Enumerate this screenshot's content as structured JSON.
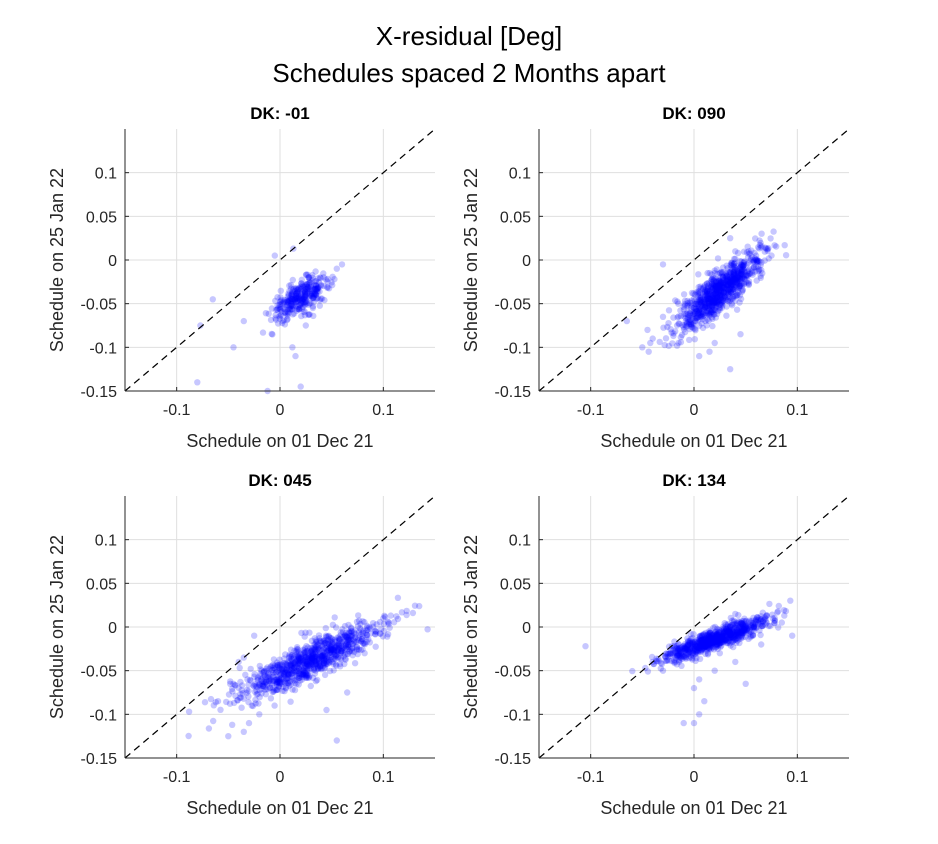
{
  "figure": {
    "title_line1": "X-residual [Deg]",
    "title_line2": "Schedules spaced 2 Months apart"
  },
  "chart_data": [
    {
      "type": "scatter",
      "title": "DK: -01",
      "xlabel": "Schedule on 01 Dec 21",
      "ylabel": "Schedule on 25 Jan 22",
      "xlim": [
        -0.15,
        0.15
      ],
      "ylim": [
        -0.15,
        0.15
      ],
      "xticks": [
        -0.1,
        0,
        0.1
      ],
      "yticks": [
        -0.15,
        -0.1,
        -0.05,
        0,
        0.05,
        0.1
      ],
      "xtick_labels": [
        "-0.1",
        "0",
        "0.1"
      ],
      "ytick_labels": [
        "-0.15",
        "-0.1",
        "-0.05",
        "0",
        "0.05",
        "0.1"
      ],
      "grid": true,
      "reference_line": "y = x",
      "marker_color": "#0000ff",
      "cluster": {
        "count": 320,
        "x_mean": 0.02,
        "x_sd": 0.014,
        "slope": 0.6,
        "intercept": -0.055,
        "scatter": 0.009
      },
      "outliers": [
        [
          -0.065,
          -0.045
        ],
        [
          -0.077,
          -0.075
        ],
        [
          -0.045,
          -0.1
        ],
        [
          -0.035,
          -0.07
        ],
        [
          -0.08,
          -0.14
        ],
        [
          -0.012,
          -0.15
        ],
        [
          0.02,
          -0.145
        ],
        [
          0.015,
          -0.11
        ],
        [
          0.012,
          -0.1
        ],
        [
          0.025,
          -0.075
        ],
        [
          0.013,
          0.013
        ],
        [
          0.055,
          -0.01
        ],
        [
          0.06,
          -0.005
        ],
        [
          -0.005,
          0.005
        ]
      ]
    },
    {
      "type": "scatter",
      "title": "DK: 090",
      "xlabel": "Schedule on 01 Dec 21",
      "ylabel": "Schedule on 25 Jan 22",
      "xlim": [
        -0.15,
        0.15
      ],
      "ylim": [
        -0.15,
        0.15
      ],
      "xticks": [
        -0.1,
        0,
        0.1
      ],
      "yticks": [
        -0.15,
        -0.1,
        -0.05,
        0,
        0.05,
        0.1
      ],
      "xtick_labels": [
        "-0.1",
        "0",
        "0.1"
      ],
      "ytick_labels": [
        "-0.15",
        "-0.1",
        "-0.05",
        "0",
        "0.05",
        "0.1"
      ],
      "grid": true,
      "reference_line": "y = x",
      "marker_color": "#0000ff",
      "cluster": {
        "count": 850,
        "x_mean": 0.025,
        "x_sd": 0.02,
        "slope": 0.9,
        "intercept": -0.058,
        "scatter": 0.012
      },
      "outliers": [
        [
          -0.03,
          -0.005
        ],
        [
          -0.05,
          -0.1
        ],
        [
          -0.045,
          -0.08
        ],
        [
          -0.03,
          -0.065
        ],
        [
          -0.04,
          -0.09
        ],
        [
          0.035,
          0.025
        ],
        [
          0.04,
          0.01
        ],
        [
          0.005,
          -0.11
        ],
        [
          0.015,
          -0.105
        ],
        [
          0.02,
          -0.095
        ],
        [
          0.035,
          -0.125
        ],
        [
          0.06,
          0.0
        ],
        [
          0.075,
          0.005
        ],
        [
          -0.015,
          -0.095
        ],
        [
          -0.065,
          -0.07
        ],
        [
          0.045,
          -0.085
        ]
      ]
    },
    {
      "type": "scatter",
      "title": "DK: 045",
      "xlabel": "Schedule on 01 Dec 21",
      "ylabel": "Schedule on 25 Jan 22",
      "xlim": [
        -0.15,
        0.15
      ],
      "ylim": [
        -0.15,
        0.15
      ],
      "xticks": [
        -0.1,
        0,
        0.1
      ],
      "yticks": [
        -0.15,
        -0.1,
        -0.05,
        0,
        0.05,
        0.1
      ],
      "xtick_labels": [
        "-0.1",
        "0",
        "0.1"
      ],
      "ytick_labels": [
        "-0.15",
        "-0.1",
        "-0.05",
        "0",
        "0.05",
        "0.1"
      ],
      "grid": true,
      "reference_line": "y = x",
      "marker_color": "#0000ff",
      "cluster": {
        "count": 900,
        "x_mean": 0.03,
        "x_sd": 0.035,
        "slope": 0.55,
        "intercept": -0.055,
        "scatter": 0.011
      },
      "outliers": [
        [
          -0.025,
          -0.01
        ],
        [
          -0.035,
          -0.035
        ],
        [
          -0.04,
          -0.04
        ],
        [
          -0.06,
          -0.085
        ],
        [
          -0.05,
          -0.125
        ],
        [
          -0.035,
          -0.12
        ],
        [
          -0.03,
          -0.11
        ],
        [
          0.055,
          -0.13
        ],
        [
          0.045,
          -0.095
        ],
        [
          0.1,
          0.01
        ],
        [
          0.105,
          0.005
        ],
        [
          -0.045,
          -0.065
        ],
        [
          0.065,
          -0.075
        ],
        [
          -0.02,
          -0.1
        ]
      ]
    },
    {
      "type": "scatter",
      "title": "DK: 134",
      "xlabel": "Schedule on 01 Dec 21",
      "ylabel": "Schedule on 25 Jan 22",
      "xlim": [
        -0.15,
        0.15
      ],
      "ylim": [
        -0.15,
        0.15
      ],
      "xticks": [
        -0.1,
        0,
        0.1
      ],
      "yticks": [
        -0.15,
        -0.1,
        -0.05,
        0,
        0.05,
        0.1
      ],
      "xtick_labels": [
        "-0.1",
        "0",
        "0.1"
      ],
      "ytick_labels": [
        "-0.15",
        "-0.1",
        "-0.05",
        "0",
        "0.05",
        "0.1"
      ],
      "grid": true,
      "reference_line": "y = x",
      "marker_color": "#0000ff",
      "cluster": {
        "count": 800,
        "x_mean": 0.02,
        "x_sd": 0.025,
        "slope": 0.45,
        "intercept": -0.023,
        "scatter": 0.006
      },
      "outliers": [
        [
          -0.105,
          -0.022
        ],
        [
          -0.04,
          -0.04
        ],
        [
          -0.03,
          -0.05
        ],
        [
          0.005,
          -0.06
        ],
        [
          0.0,
          -0.07
        ],
        [
          0.005,
          -0.1
        ],
        [
          -0.01,
          -0.11
        ],
        [
          0.0,
          -0.11
        ],
        [
          0.05,
          -0.065
        ],
        [
          0.02,
          -0.05
        ],
        [
          0.025,
          -0.03
        ],
        [
          0.04,
          0.015
        ],
        [
          0.085,
          0.005
        ],
        [
          0.095,
          -0.01
        ],
        [
          0.04,
          -0.04
        ],
        [
          0.01,
          -0.085
        ],
        [
          0.065,
          -0.02
        ]
      ]
    }
  ]
}
